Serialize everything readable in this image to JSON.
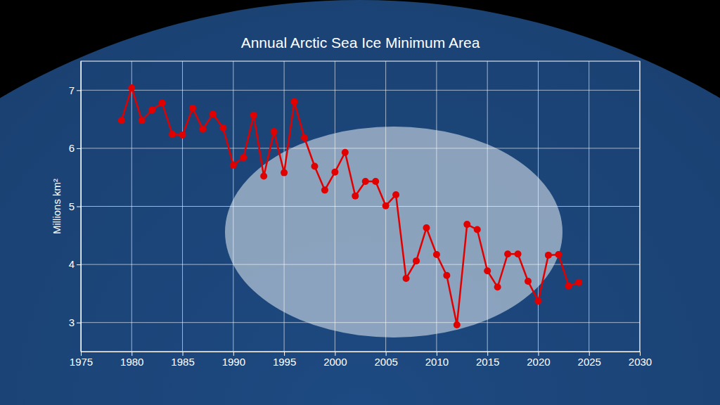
{
  "chart_data": {
    "type": "line",
    "title": "Annual Arctic Sea Ice Minimum Area",
    "y_label": "Millions km²",
    "x": [
      1979,
      1980,
      1981,
      1982,
      1983,
      1984,
      1985,
      1986,
      1987,
      1988,
      1989,
      1990,
      1991,
      1992,
      1993,
      1994,
      1995,
      1996,
      1997,
      1998,
      1999,
      2000,
      2001,
      2002,
      2003,
      2004,
      2005,
      2006,
      2007,
      2008,
      2009,
      2010,
      2011,
      2012,
      2013,
      2014,
      2015,
      2016,
      2017,
      2018,
      2019,
      2020,
      2021,
      2022,
      2023,
      2024
    ],
    "values": [
      6.48,
      7.04,
      6.48,
      6.66,
      6.78,
      6.24,
      6.23,
      6.69,
      6.33,
      6.59,
      6.35,
      5.71,
      5.84,
      6.57,
      5.52,
      6.29,
      5.58,
      6.8,
      6.18,
      5.69,
      5.28,
      5.59,
      5.93,
      5.18,
      5.43,
      5.43,
      5.01,
      5.2,
      3.76,
      4.06,
      4.63,
      4.17,
      3.81,
      2.96,
      4.69,
      4.6,
      3.89,
      3.61,
      4.18,
      4.18,
      3.71,
      3.37,
      4.16,
      4.17,
      3.63,
      3.69
    ],
    "color": "#e00000",
    "marker": "circle",
    "line_style": "solid",
    "xlim": [
      1975,
      2030
    ],
    "xticks": [
      1975,
      1980,
      1985,
      1990,
      1995,
      2000,
      2005,
      2010,
      2015,
      2020,
      2025,
      2030
    ],
    "ylim": [
      2.5,
      7.5
    ],
    "yticks": [
      3,
      4,
      5,
      6,
      7
    ],
    "grid": true
  }
}
